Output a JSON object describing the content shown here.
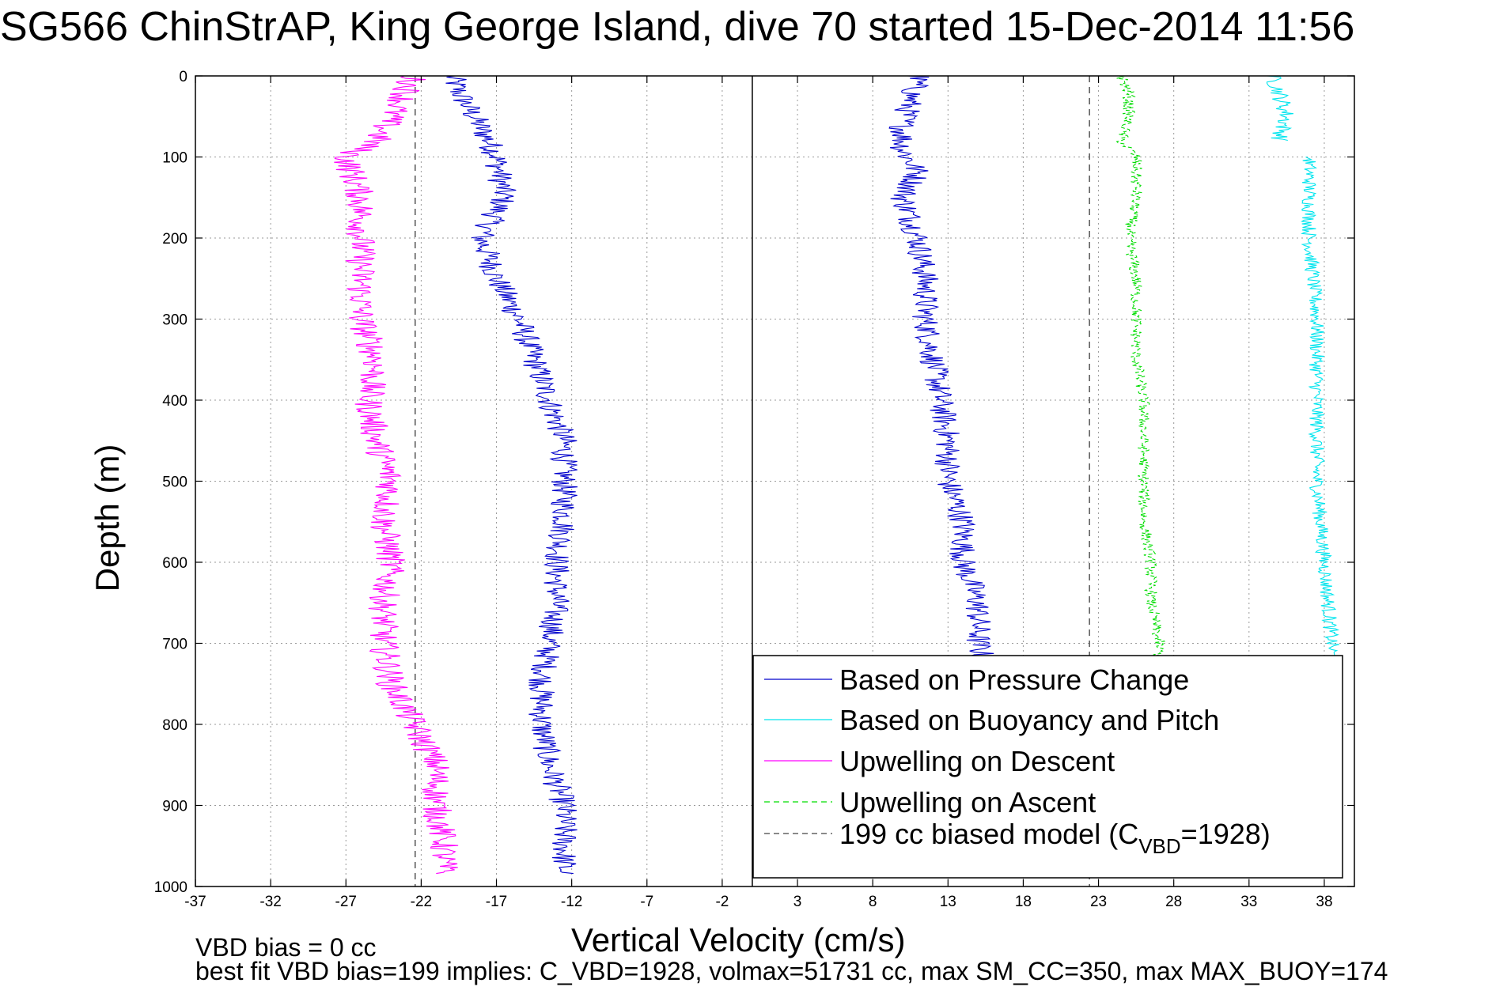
{
  "chart_data": {
    "type": "line",
    "title": "SG566 ChinStrAP, King George Island, dive 70 started 15-Dec-2014 11:56",
    "xlabel": "Vertical Velocity (cm/s)",
    "ylabel": "Depth (m)",
    "xlim": [
      -37,
      40
    ],
    "ylim": [
      0,
      1000
    ],
    "y_reversed": true,
    "grid": true,
    "legend_placement": "bottom-right",
    "x_ticks": [
      -37,
      -32,
      -27,
      -22,
      -17,
      -12,
      -7,
      -2,
      3,
      8,
      13,
      18,
      23,
      28,
      33,
      38
    ],
    "y_ticks": [
      0,
      100,
      200,
      300,
      400,
      500,
      600,
      700,
      800,
      900,
      1000
    ],
    "vertical_reference_lines": [
      {
        "x": 0,
        "style": "solid",
        "color": "#000000"
      },
      {
        "x": -22.4,
        "style": "dashed",
        "color": "#555555"
      },
      {
        "x": 22.4,
        "style": "dashed",
        "color": "#555555"
      }
    ],
    "legend": [
      {
        "label": "Based on Pressure Change",
        "color": "#0000cc",
        "style": "solid"
      },
      {
        "label": "Based on Buoyancy and Pitch",
        "color": "#00e5ee",
        "style": "solid"
      },
      {
        "label": "Upwelling on Descent",
        "color": "#ff00ff",
        "style": "solid"
      },
      {
        "label": "Upwelling on Ascent",
        "color": "#00dd00",
        "style": "dashed"
      },
      {
        "label_main": "199 cc biased model (C",
        "label_sub": "VBD",
        "label_tail": "=1928)",
        "color": "#444444",
        "style": "dashed"
      }
    ],
    "series": [
      {
        "key": "pressure_descent",
        "color": "#0000cc",
        "style": "solid",
        "noise": 0.9,
        "depth": [
          0,
          20,
          50,
          80,
          100,
          150,
          200,
          250,
          300,
          350,
          400,
          450,
          500,
          550,
          600,
          650,
          700,
          750,
          800,
          850,
          900,
          950,
          985
        ],
        "x": [
          -20,
          -19.5,
          -18.5,
          -17.5,
          -17,
          -16.5,
          -18,
          -17,
          -15.5,
          -14.5,
          -13.5,
          -12.5,
          -12.5,
          -12.5,
          -13,
          -13,
          -13.5,
          -14,
          -14,
          -13.5,
          -12.5,
          -12.5,
          -12.5
        ]
      },
      {
        "key": "pressure_ascent",
        "color": "#0000cc",
        "style": "solid",
        "noise": 0.9,
        "depth": [
          0,
          30,
          60,
          90,
          120,
          150,
          200,
          250,
          300,
          350,
          400,
          450,
          500,
          550,
          600,
          650,
          700,
          730
        ],
        "x": [
          11,
          10.5,
          10,
          10,
          11,
          10,
          11,
          11.5,
          11.5,
          12,
          12.5,
          13,
          13,
          14,
          14,
          15,
          15,
          15.5
        ]
      },
      {
        "key": "buoyancy_descent",
        "color": "#00e5ee",
        "style": "solid",
        "noise": 0.6,
        "depth": [
          0,
          20,
          50,
          80
        ],
        "x": [
          34.5,
          35,
          35.5,
          35
        ]
      },
      {
        "key": "buoyancy_ascent",
        "color": "#00e5ee",
        "style": "solid",
        "noise": 0.5,
        "depth": [
          100,
          200,
          300,
          400,
          500,
          600,
          700,
          780
        ],
        "x": [
          37,
          37,
          37.5,
          37.5,
          37.5,
          38,
          38.5,
          38.5
        ]
      },
      {
        "key": "upwelling_descent",
        "color": "#ff00ff",
        "style": "solid",
        "noise": 1.0,
        "depth": [
          0,
          20,
          50,
          80,
          100,
          150,
          200,
          250,
          300,
          350,
          400,
          450,
          500,
          550,
          600,
          650,
          700,
          750,
          800,
          850,
          900,
          950,
          985
        ],
        "x": [
          -22.5,
          -23,
          -24,
          -25,
          -27,
          -26,
          -26,
          -26,
          -26,
          -25,
          -25.5,
          -25,
          -24,
          -24.5,
          -24,
          -24.5,
          -24.5,
          -24,
          -22.5,
          -21,
          -21,
          -20.5,
          -20.5
        ]
      },
      {
        "key": "upwelling_ascent",
        "color": "#00dd00",
        "style": "dashed",
        "noise": 0.4,
        "depth": [
          0,
          20,
          50,
          80,
          100,
          150,
          200,
          250,
          300,
          350,
          400,
          450,
          500,
          550,
          600,
          650,
          700,
          720
        ],
        "x": [
          24.5,
          25,
          25,
          24.5,
          25.5,
          25.5,
          25,
          25.5,
          25.5,
          25.5,
          26,
          26,
          26,
          26,
          26.5,
          26.5,
          27,
          27
        ]
      }
    ]
  },
  "notes": {
    "line1": "VBD bias = 0 cc",
    "line2": "best fit VBD bias=199 implies: C_VBD=1928, volmax=51731 cc, max SM_CC=350, max MAX_BUOY=174"
  }
}
